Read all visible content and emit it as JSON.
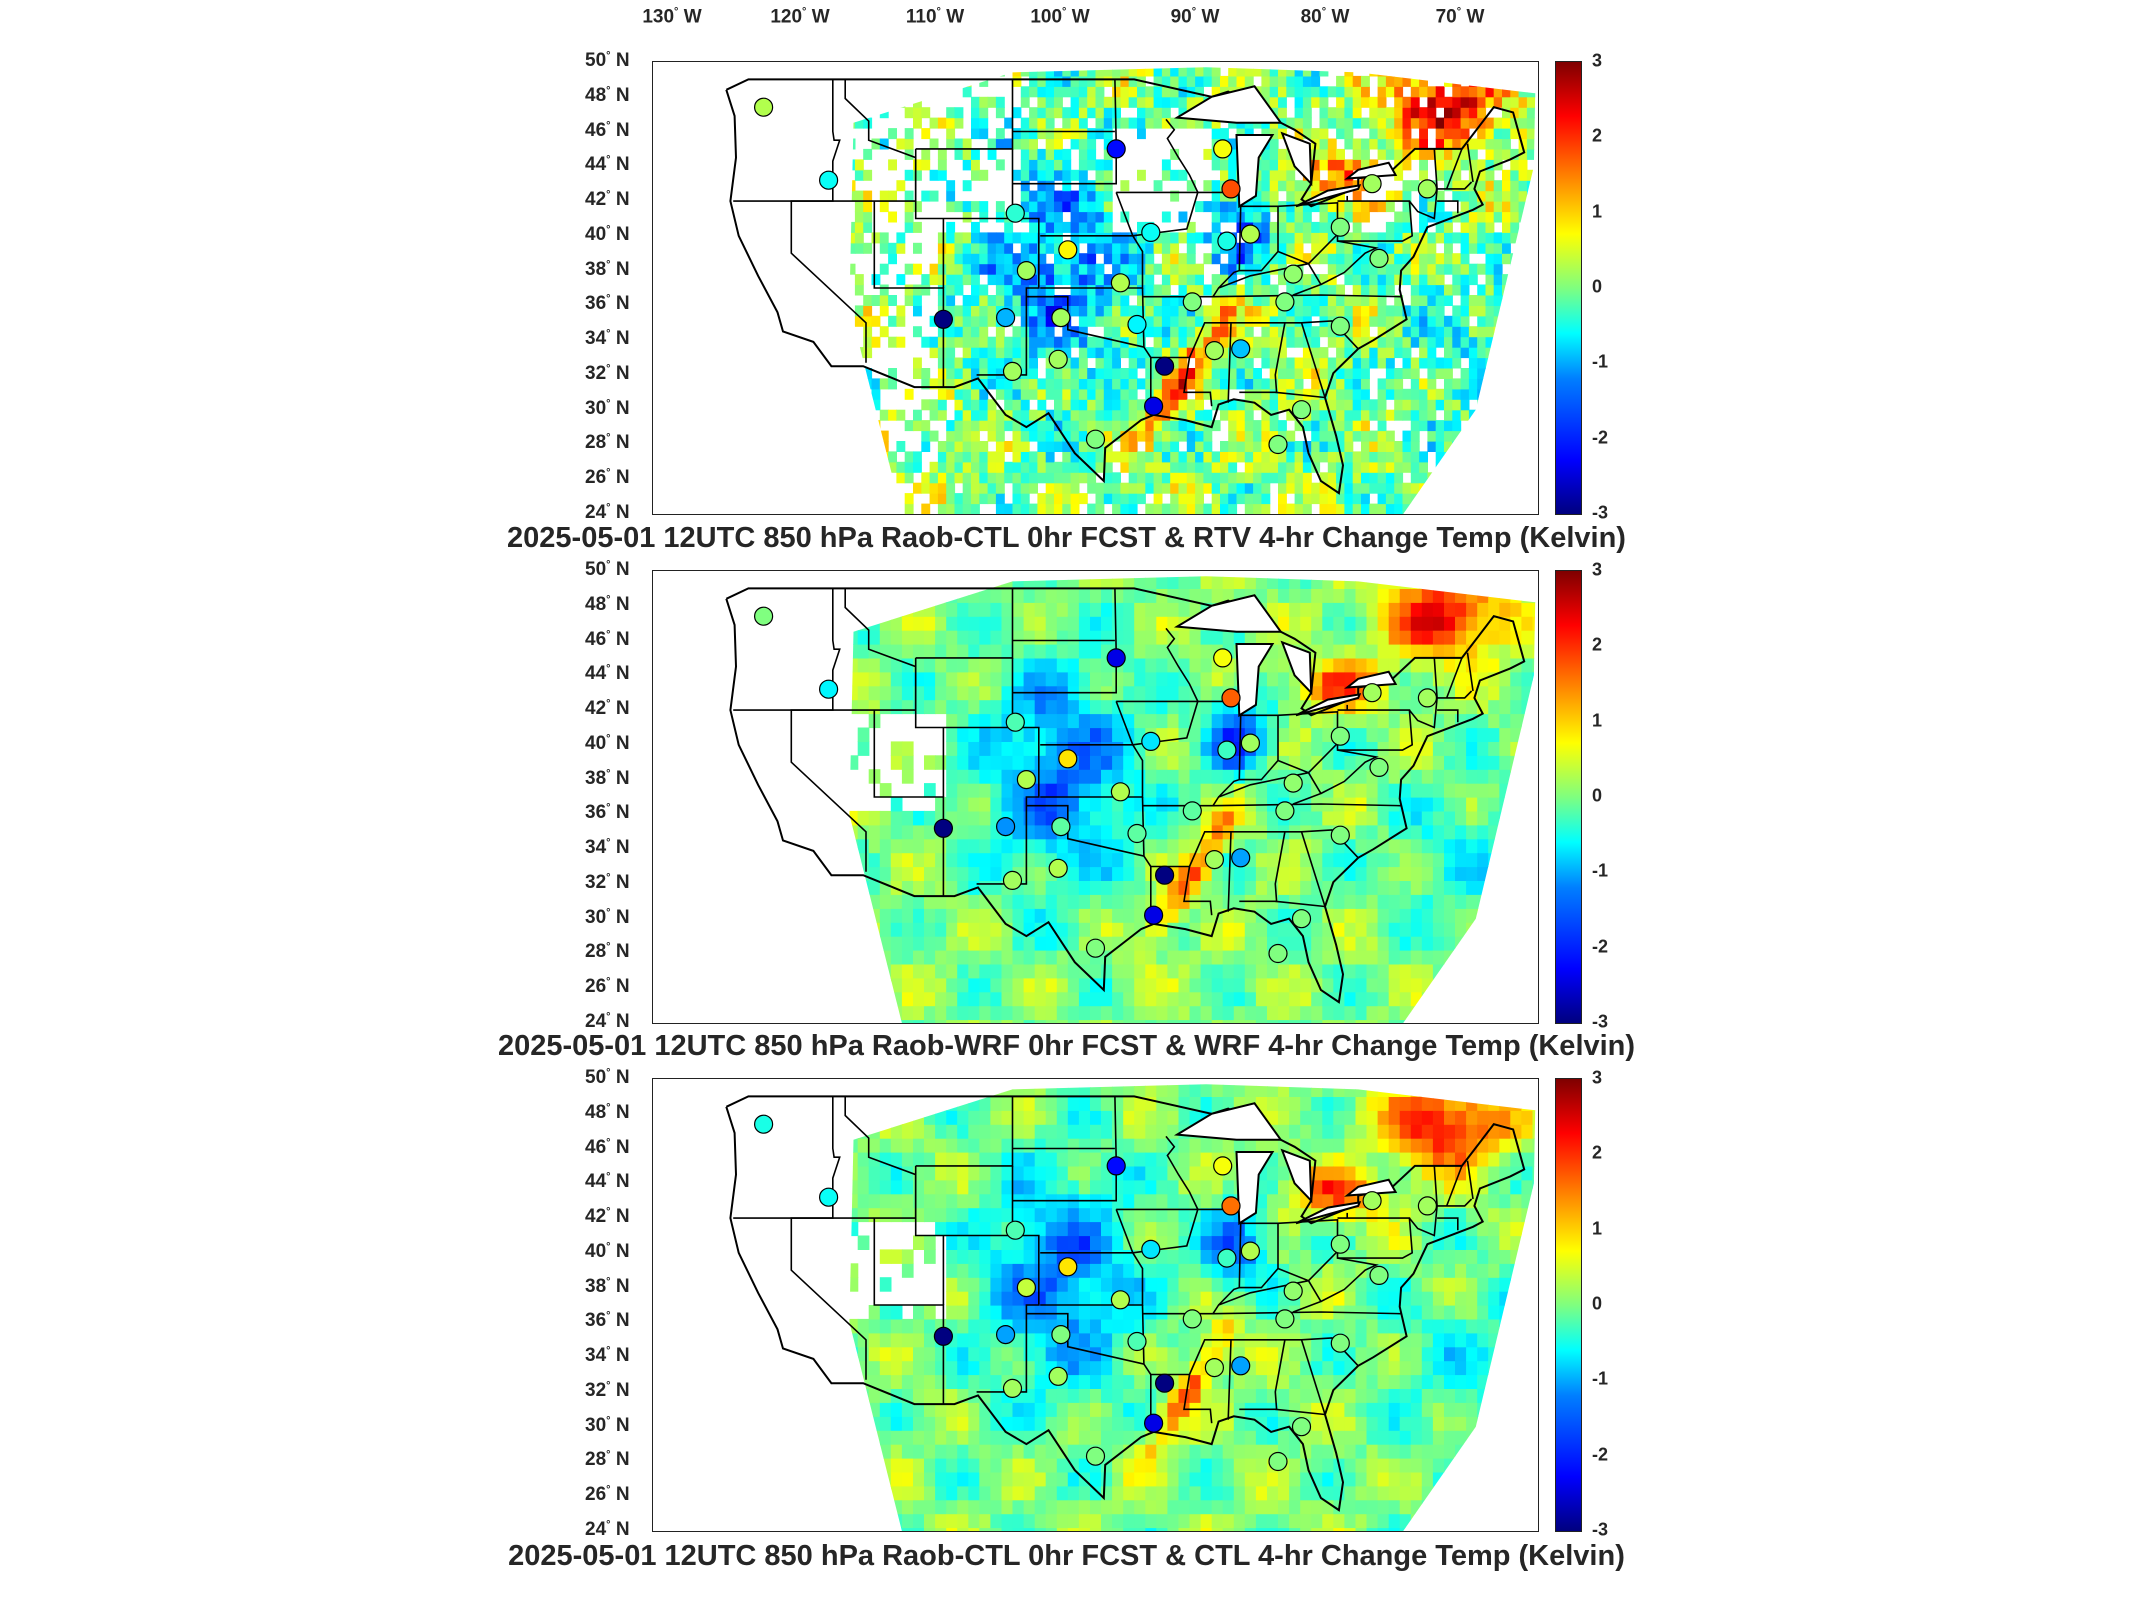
{
  "lon_labels": [
    "130",
    "120",
    "110",
    "100",
    "90",
    "80",
    "70"
  ],
  "lon_suffix": "W",
  "lat_labels": [
    "50",
    "48",
    "46",
    "44",
    "42",
    "40",
    "38",
    "36",
    "34",
    "32",
    "30",
    "28",
    "26",
    "24"
  ],
  "lat_suffix": "N",
  "colorbar": {
    "ticks": [
      "3",
      "2",
      "1",
      "0",
      "-1",
      "-2",
      "-3"
    ],
    "range": [
      -3,
      3
    ],
    "colormap": "jet",
    "colors": [
      "#00007f",
      "#0000ff",
      "#007fff",
      "#00ffff",
      "#7fff7f",
      "#ffff00",
      "#ff7f00",
      "#ff0000",
      "#7f0000"
    ]
  },
  "panels": [
    {
      "title": "2025-05-01 12UTC 850 hPa Raob-CTL 0hr FCST & RTV 4-hr Change Temp (Kelvin)",
      "background": "sparse"
    },
    {
      "title": "2025-05-01 12UTC 850 hPa Raob-WRF 0hr FCST & WRF 4-hr Change Temp (Kelvin)",
      "background": "full"
    },
    {
      "title": "2025-05-01 12UTC 850 hPa Raob-CTL 0hr FCST & CTL 4-hr Change Temp (Kelvin)",
      "background": "full"
    }
  ],
  "stations": [
    {
      "lon": -122.0,
      "lat": 47.4,
      "values": [
        0.3,
        0.0,
        -0.6
      ]
    },
    {
      "lon": -117.3,
      "lat": 43.2,
      "values": [
        -0.7,
        -0.8,
        -0.7
      ]
    },
    {
      "lon": -109.0,
      "lat": 35.2,
      "values": [
        -3.0,
        -3.0,
        -3.0
      ]
    },
    {
      "lon": -103.8,
      "lat": 41.3,
      "values": [
        -0.5,
        -0.3,
        -0.3
      ]
    },
    {
      "lon": -103.0,
      "lat": 38.0,
      "values": [
        0.2,
        0.3,
        0.4
      ]
    },
    {
      "lon": -104.5,
      "lat": 35.3,
      "values": [
        -1.2,
        -1.4,
        -1.3
      ]
    },
    {
      "lon": -104.0,
      "lat": 32.2,
      "values": [
        0.2,
        0.2,
        0.2
      ]
    },
    {
      "lon": -100.0,
      "lat": 39.2,
      "values": [
        0.8,
        0.9,
        0.9
      ]
    },
    {
      "lon": -100.5,
      "lat": 35.3,
      "values": [
        0.2,
        -0.2,
        0.0
      ]
    },
    {
      "lon": -100.7,
      "lat": 32.9,
      "values": [
        0.2,
        0.3,
        0.2
      ]
    },
    {
      "lon": -98.0,
      "lat": 28.3,
      "values": [
        0.0,
        0.0,
        0.0
      ]
    },
    {
      "lon": -96.5,
      "lat": 45.0,
      "values": [
        -2.2,
        -2.4,
        -2.2
      ]
    },
    {
      "lon": -96.2,
      "lat": 37.3,
      "values": [
        0.3,
        0.3,
        0.3
      ]
    },
    {
      "lon": -95.0,
      "lat": 34.9,
      "values": [
        -0.8,
        -0.2,
        -0.3
      ]
    },
    {
      "lon": -94.0,
      "lat": 40.2,
      "values": [
        -0.7,
        -0.9,
        -0.9
      ]
    },
    {
      "lon": -93.0,
      "lat": 32.5,
      "values": [
        -3.0,
        -3.0,
        -3.0
      ]
    },
    {
      "lon": -93.8,
      "lat": 30.2,
      "values": [
        -2.4,
        -2.4,
        -2.4
      ]
    },
    {
      "lon": -88.8,
      "lat": 45.0,
      "values": [
        0.7,
        0.7,
        0.7
      ]
    },
    {
      "lon": -88.2,
      "lat": 42.7,
      "values": [
        1.8,
        1.7,
        1.6
      ]
    },
    {
      "lon": -88.5,
      "lat": 39.7,
      "values": [
        -0.6,
        -0.4,
        -0.4
      ]
    },
    {
      "lon": -91.0,
      "lat": 36.2,
      "values": [
        0.0,
        -0.2,
        0.0
      ]
    },
    {
      "lon": -89.4,
      "lat": 33.4,
      "values": [
        0.2,
        0.2,
        0.2
      ]
    },
    {
      "lon": -87.5,
      "lat": 33.5,
      "values": [
        -1.1,
        -1.3,
        -1.3
      ]
    },
    {
      "lon": -86.8,
      "lat": 40.1,
      "values": [
        0.3,
        0.2,
        0.3
      ]
    },
    {
      "lon": -83.7,
      "lat": 37.8,
      "values": [
        0.1,
        0.1,
        0.1
      ]
    },
    {
      "lon": -84.3,
      "lat": 36.2,
      "values": [
        0.0,
        0.0,
        0.0
      ]
    },
    {
      "lon": -83.1,
      "lat": 30.0,
      "values": [
        0.0,
        0.0,
        0.0
      ]
    },
    {
      "lon": -84.8,
      "lat": 28.0,
      "values": [
        0.0,
        0.0,
        0.0
      ]
    },
    {
      "lon": -78.0,
      "lat": 43.0,
      "values": [
        0.2,
        0.2,
        0.2
      ]
    },
    {
      "lon": -80.3,
      "lat": 40.5,
      "values": [
        0.0,
        0.0,
        0.0
      ]
    },
    {
      "lon": -77.5,
      "lat": 38.7,
      "values": [
        0.0,
        0.0,
        0.0
      ]
    },
    {
      "lon": -74.0,
      "lat": 42.7,
      "values": [
        0.2,
        0.2,
        0.2
      ]
    },
    {
      "lon": -80.3,
      "lat": 34.8,
      "values": [
        0.0,
        0.0,
        0.0
      ]
    }
  ]
}
